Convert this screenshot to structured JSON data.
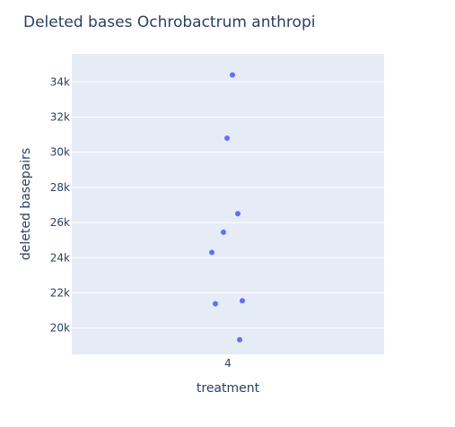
{
  "chart_data": {
    "type": "scatter",
    "title": "Deleted bases Ochrobactrum anthropi",
    "xlabel": "treatment",
    "ylabel": "deleted basepairs",
    "x_categories": [
      "4"
    ],
    "ylim": [
      18500,
      35600
    ],
    "yticks": [
      20000,
      22000,
      24000,
      26000,
      28000,
      30000,
      32000,
      34000
    ],
    "ytick_labels": [
      "20k",
      "22k",
      "24k",
      "26k",
      "28k",
      "30k",
      "32k",
      "34k"
    ],
    "grid": true,
    "marker_color": "#636efa",
    "plot_bg": "#e5ecf6",
    "points": [
      {
        "x": "4",
        "y": 34400
      },
      {
        "x": "4",
        "y": 30800
      },
      {
        "x": "4",
        "y": 26500
      },
      {
        "x": "4",
        "y": 25450
      },
      {
        "x": "4",
        "y": 24300
      },
      {
        "x": "4",
        "y": 21550
      },
      {
        "x": "4",
        "y": 21380
      },
      {
        "x": "4",
        "y": 19330
      }
    ]
  }
}
